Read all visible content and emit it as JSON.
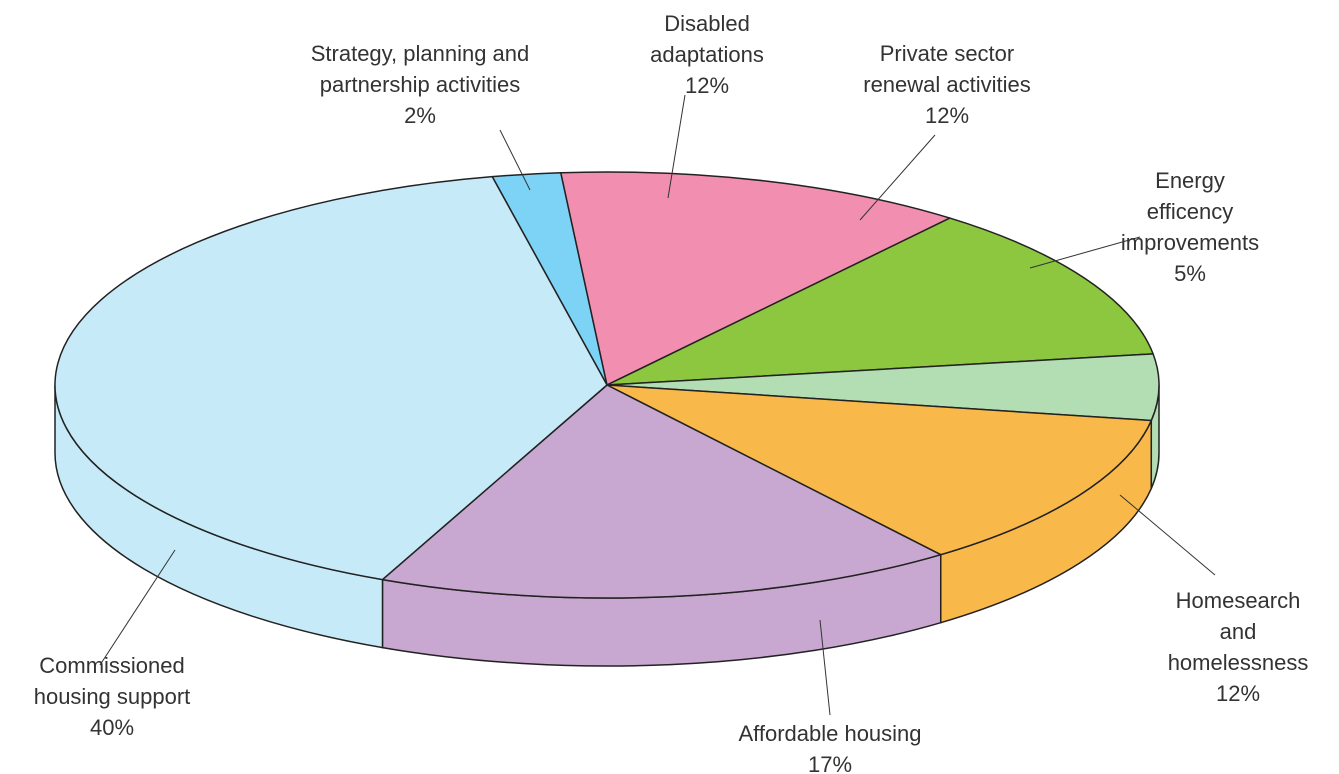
{
  "chart_data": {
    "type": "pie3d",
    "categories": [
      "Strategy, planning and\npartnership activities",
      "Disabled\nadaptations",
      "Private sector\nrenewal activities",
      "Energy efficency\nimprovements",
      "Homesearch\nand homelessness",
      "Affordable housing",
      "Commissioned\nhousing support"
    ],
    "values": [
      2,
      12,
      12,
      5,
      12,
      17,
      40
    ],
    "value_labels": [
      "2%",
      "12%",
      "12%",
      "5%",
      "12%",
      "17%",
      "40%"
    ],
    "colors": [
      "#7dd3f5",
      "#f28fb0",
      "#8dc63f",
      "#b3ddb3",
      "#f9b84a",
      "#c8a8d0",
      "#c6eaf8"
    ]
  }
}
